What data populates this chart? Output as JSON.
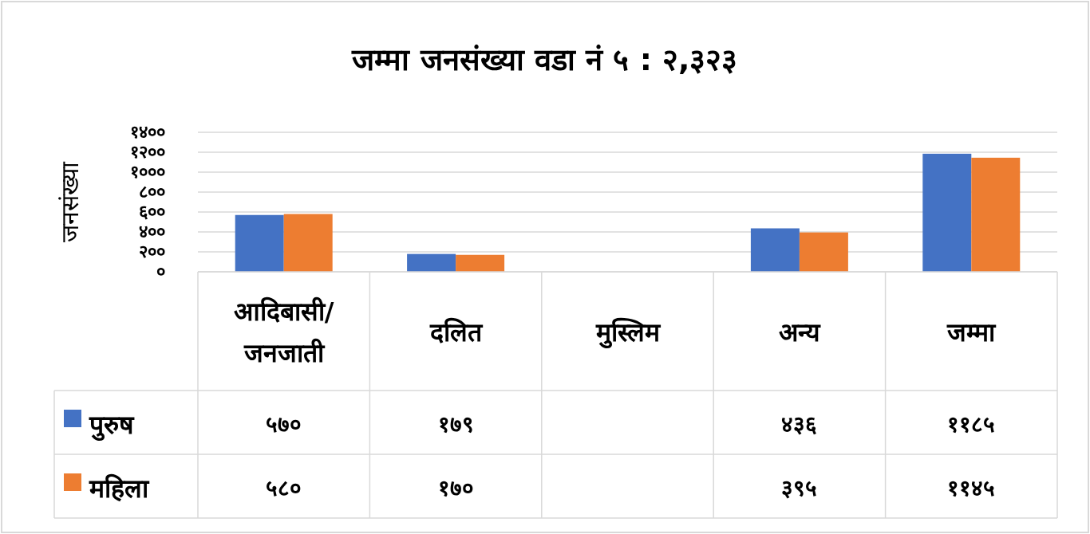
{
  "chart_data": {
    "type": "bar",
    "title": "जम्मा जनसंख्या वडा नं ५ : २,३२३",
    "ylabel": "जनसंख्या",
    "categories": [
      "आदिबासी/जनजाती",
      "दलित",
      "मुस्लिम",
      "अन्य",
      "जम्मा"
    ],
    "series": [
      {
        "name": "पुरुष",
        "color": "#4472c4",
        "values": [
          570,
          179,
          null,
          436,
          1185
        ],
        "value_labels": [
          "५७०",
          "१७९",
          null,
          "४३६",
          "११८५"
        ]
      },
      {
        "name": "महिला",
        "color": "#ed7d31",
        "values": [
          580,
          170,
          null,
          395,
          1145
        ],
        "value_labels": [
          "५८०",
          "१७०",
          null,
          "३९५",
          "११४५"
        ]
      }
    ],
    "ylim": [
      0,
      1400
    ],
    "yticks": [
      {
        "value": 0,
        "label": "०"
      },
      {
        "value": 200,
        "label": "२००"
      },
      {
        "value": 400,
        "label": "४००"
      },
      {
        "value": 600,
        "label": "६००"
      },
      {
        "value": 800,
        "label": "८००"
      },
      {
        "value": 1000,
        "label": "१०००"
      },
      {
        "value": 1200,
        "label": "१२००"
      },
      {
        "value": 1400,
        "label": "१४००"
      }
    ],
    "grid": "y",
    "legend": "bottom left"
  }
}
